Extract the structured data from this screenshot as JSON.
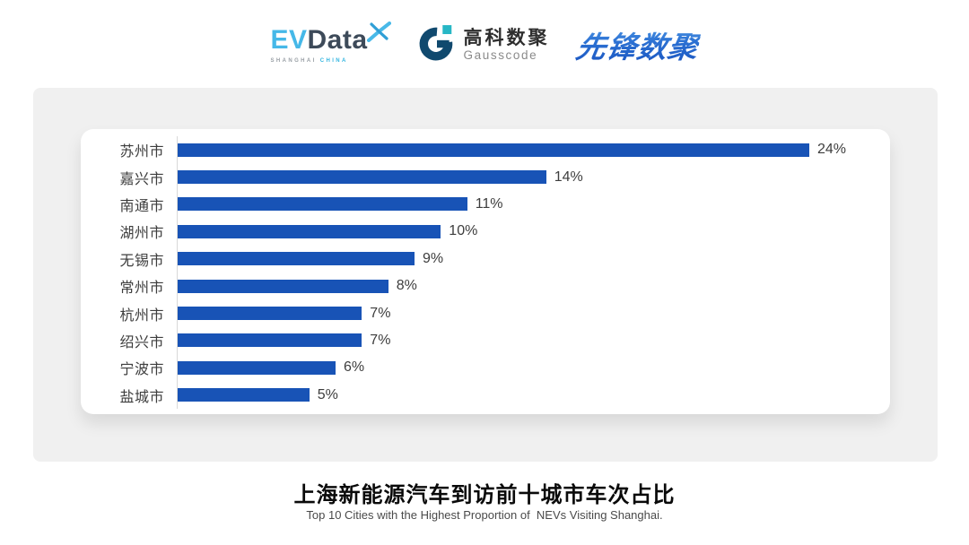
{
  "header": {
    "evdata": {
      "part1": "EV",
      "part2": "Data",
      "sub1": "SHANGHAI",
      "sub2": "CHINA"
    },
    "gausscode": {
      "name_cn": "高科数聚",
      "name_en": "Gausscode"
    },
    "pioneer": {
      "name": "先锋数聚"
    }
  },
  "chart_data": {
    "type": "bar",
    "orientation": "horizontal",
    "title": "上海新能源汽车到访前十城市车次占比",
    "subtitle": "Top 10 Cities with the Highest Proportion of  NEVs Visiting Shanghai.",
    "categories": [
      "苏州市",
      "嘉兴市",
      "南通市",
      "湖州市",
      "无锡市",
      "常州市",
      "杭州市",
      "绍兴市",
      "宁波市",
      "盐城市"
    ],
    "values": [
      24,
      14,
      11,
      10,
      9,
      8,
      7,
      7,
      6,
      5
    ],
    "value_labels": [
      "24%",
      "14%",
      "11%",
      "10%",
      "9%",
      "8%",
      "7%",
      "7%",
      "6%",
      "5%"
    ],
    "xlim": [
      0,
      24
    ],
    "bar_color": "#1853b6",
    "axis_line_color": "#d9d9d9",
    "grid": false,
    "legend": false,
    "value_label_position": "end-of-bar"
  }
}
